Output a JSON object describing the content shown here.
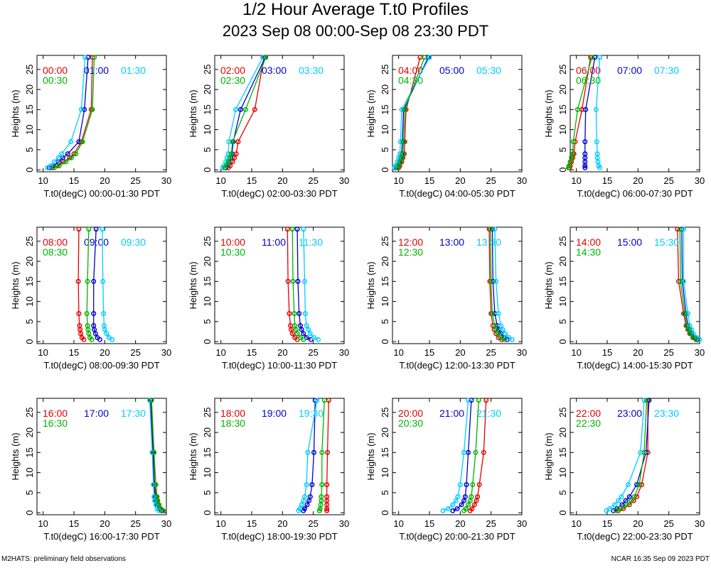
{
  "title": "1/2 Hour Average T.t0 Profiles",
  "subtitle": "2023 Sep 08 00:00-Sep 08 23:30 PDT",
  "footer_left": "M2HATS: preliminary field observations",
  "footer_right": "NCAR 16:35 Sep 09 2023 PDT",
  "colors": {
    "series1": "#e60000",
    "series2": "#0000cc",
    "series3": "#00ccff",
    "series4": "#00b300"
  },
  "chart_data": [
    {
      "type": "line",
      "xlabel": "T.t0(degC) 00:00-01:30 PDT",
      "ylabel": "Heights (m)",
      "xlim": [
        9,
        30
      ],
      "ylim": [
        -0.5,
        28.5
      ],
      "xticks": [
        10,
        15,
        20,
        25,
        30
      ],
      "yticks": [
        0,
        5,
        10,
        15,
        20,
        25
      ],
      "heights": [
        0.5,
        1,
        2,
        3,
        4,
        7,
        15,
        28
      ],
      "series": [
        {
          "name": "00:00",
          "values": [
            11.5,
            12.3,
            13.3,
            14.3,
            15.0,
            16.2,
            17.8,
            18.0
          ]
        },
        {
          "name": "01:00",
          "values": [
            11.0,
            11.6,
            12.5,
            13.2,
            14.0,
            15.8,
            16.7,
            17.3
          ]
        },
        {
          "name": "01:30",
          "values": [
            10.7,
            11.2,
            11.8,
            12.5,
            13.0,
            14.5,
            16.2,
            16.8
          ]
        },
        {
          "name": "00:30",
          "values": [
            11.8,
            12.6,
            13.7,
            14.6,
            15.3,
            16.4,
            18.0,
            18.3
          ]
        }
      ]
    },
    {
      "type": "line",
      "xlabel": "T.t0(degC) 02:00-03:30 PDT",
      "ylabel": "Heights (m)",
      "xlim": [
        9,
        30
      ],
      "ylim": [
        -0.5,
        28.5
      ],
      "xticks": [
        10,
        15,
        20,
        25,
        30
      ],
      "yticks": [
        0,
        5,
        10,
        15,
        20,
        25
      ],
      "heights": [
        0.5,
        1,
        2,
        3,
        4,
        7,
        15,
        28
      ],
      "series": [
        {
          "name": "02:00",
          "values": [
            11.2,
            11.5,
            11.9,
            12.2,
            12.5,
            12.8,
            15.5,
            17.0
          ]
        },
        {
          "name": "03:00",
          "values": [
            10.8,
            11.0,
            11.3,
            11.6,
            11.8,
            12.0,
            13.2,
            17.2
          ]
        },
        {
          "name": "03:30",
          "values": [
            10.3,
            10.5,
            10.8,
            11.0,
            11.2,
            11.3,
            12.4,
            16.8
          ]
        },
        {
          "name": "02:30",
          "values": [
            10.6,
            10.9,
            11.2,
            11.5,
            11.7,
            11.9,
            14.0,
            17.3
          ]
        }
      ]
    },
    {
      "type": "line",
      "xlabel": "T.t0(degC) 04:00-05:30 PDT",
      "ylabel": "Heights (m)",
      "xlim": [
        9,
        30
      ],
      "ylim": [
        -0.5,
        28.5
      ],
      "xticks": [
        10,
        15,
        20,
        25,
        30
      ],
      "yticks": [
        0,
        5,
        10,
        15,
        20,
        25
      ],
      "heights": [
        0.5,
        1,
        2,
        3,
        4,
        7,
        15,
        28
      ],
      "series": [
        {
          "name": "04:00",
          "values": [
            10.0,
            10.2,
            10.5,
            10.7,
            10.9,
            11.0,
            11.2,
            13.5
          ]
        },
        {
          "name": "05:00",
          "values": [
            9.6,
            9.8,
            10.1,
            10.3,
            10.5,
            10.6,
            10.8,
            14.8
          ]
        },
        {
          "name": "05:30",
          "values": [
            9.3,
            9.5,
            9.8,
            10.0,
            10.2,
            10.3,
            10.5,
            15.0
          ]
        },
        {
          "name": "04:30",
          "values": [
            9.8,
            10.0,
            10.3,
            10.5,
            10.7,
            10.8,
            11.0,
            14.2
          ]
        }
      ]
    },
    {
      "type": "line",
      "xlabel": "T.t0(degC) 06:00-07:30 PDT",
      "ylabel": "Heights (m)",
      "xlim": [
        9,
        30
      ],
      "ylim": [
        -0.5,
        28.5
      ],
      "xticks": [
        10,
        15,
        20,
        25,
        30
      ],
      "yticks": [
        0,
        5,
        10,
        15,
        20,
        25
      ],
      "heights": [
        0.5,
        1,
        2,
        3,
        4,
        7,
        15,
        28
      ],
      "series": [
        {
          "name": "06:00",
          "values": [
            8.9,
            9.0,
            9.2,
            9.4,
            9.6,
            9.8,
            10.9,
            12.3
          ]
        },
        {
          "name": "07:00",
          "values": [
            11.4,
            11.4,
            11.4,
            11.4,
            11.4,
            11.4,
            11.5,
            13.0
          ]
        },
        {
          "name": "07:30",
          "values": [
            13.8,
            13.6,
            13.5,
            13.4,
            13.4,
            13.3,
            13.2,
            13.8
          ]
        },
        {
          "name": "06:30",
          "values": [
            8.7,
            8.8,
            9.0,
            9.2,
            9.4,
            9.5,
            10.2,
            12.5
          ]
        }
      ]
    },
    {
      "type": "line",
      "xlabel": "T.t0(degC) 08:00-09:30 PDT",
      "ylabel": "Heights (m)",
      "xlim": [
        9,
        30
      ],
      "ylim": [
        -0.5,
        28.5
      ],
      "xticks": [
        10,
        15,
        20,
        25,
        30
      ],
      "yticks": [
        0,
        5,
        10,
        15,
        20,
        25
      ],
      "heights": [
        0.5,
        1,
        2,
        3,
        4,
        7,
        15,
        28
      ],
      "series": [
        {
          "name": "08:00",
          "values": [
            16.6,
            16.3,
            16.1,
            16.0,
            15.9,
            15.8,
            15.7,
            15.8
          ]
        },
        {
          "name": "09:00",
          "values": [
            19.2,
            18.8,
            18.5,
            18.3,
            18.2,
            18.2,
            18.2,
            18.6
          ]
        },
        {
          "name": "09:30",
          "values": [
            21.2,
            20.7,
            20.3,
            20.0,
            19.9,
            19.8,
            19.7,
            19.6
          ]
        },
        {
          "name": "08:30",
          "values": [
            17.9,
            17.6,
            17.4,
            17.3,
            17.2,
            17.1,
            17.2,
            17.4
          ]
        }
      ]
    },
    {
      "type": "line",
      "xlabel": "T.t0(degC) 10:00-11:30 PDT",
      "ylabel": "Heights (m)",
      "xlim": [
        9,
        30
      ],
      "ylim": [
        -0.5,
        28.5
      ],
      "xticks": [
        10,
        15,
        20,
        25,
        30
      ],
      "yticks": [
        0,
        5,
        10,
        15,
        20,
        25
      ],
      "heights": [
        0.5,
        1,
        2,
        3,
        4,
        7,
        15,
        28
      ],
      "series": [
        {
          "name": "10:00",
          "values": [
            22.4,
            22.0,
            21.6,
            21.4,
            21.3,
            21.1,
            20.9,
            20.8
          ]
        },
        {
          "name": "11:00",
          "values": [
            24.6,
            23.9,
            23.4,
            23.1,
            22.9,
            22.7,
            22.5,
            22.4
          ]
        },
        {
          "name": "11:30",
          "values": [
            25.8,
            25.1,
            24.5,
            24.2,
            23.9,
            23.7,
            23.6,
            23.4
          ]
        },
        {
          "name": "10:30",
          "values": [
            23.4,
            22.9,
            22.4,
            22.2,
            22.0,
            21.9,
            21.7,
            21.6
          ]
        }
      ]
    },
    {
      "type": "line",
      "xlabel": "T.t0(degC) 12:00-13:30 PDT",
      "ylabel": "Heights (m)",
      "xlim": [
        9,
        30
      ],
      "ylim": [
        -0.5,
        28.5
      ],
      "xticks": [
        10,
        15,
        20,
        25,
        30
      ],
      "yticks": [
        0,
        5,
        10,
        15,
        20,
        25
      ],
      "heights": [
        0.5,
        1,
        2,
        3,
        4,
        7,
        15,
        28
      ],
      "series": [
        {
          "name": "12:00",
          "values": [
            26.7,
            26.2,
            25.8,
            25.5,
            25.3,
            25.0,
            24.8,
            24.7
          ]
        },
        {
          "name": "13:00",
          "values": [
            27.6,
            27.1,
            26.6,
            26.3,
            26.0,
            25.6,
            25.3,
            25.2
          ]
        },
        {
          "name": "13:30",
          "values": [
            28.4,
            27.9,
            27.3,
            26.9,
            26.6,
            26.2,
            25.8,
            25.6
          ]
        },
        {
          "name": "12:30",
          "values": [
            27.1,
            26.6,
            26.1,
            25.8,
            25.6,
            25.2,
            25.0,
            24.9
          ]
        }
      ]
    },
    {
      "type": "line",
      "xlabel": "T.t0(degC) 14:00-15:30 PDT",
      "ylabel": "Heights (m)",
      "xlim": [
        9,
        30
      ],
      "ylim": [
        -0.5,
        28.5
      ],
      "xticks": [
        10,
        15,
        20,
        25,
        30
      ],
      "yticks": [
        0,
        5,
        10,
        15,
        20,
        25
      ],
      "heights": [
        0.5,
        1,
        2,
        3,
        4,
        7,
        15,
        28
      ],
      "series": [
        {
          "name": "14:00",
          "values": [
            29.4,
            28.9,
            28.4,
            28.1,
            27.8,
            27.4,
            26.6,
            26.4
          ]
        },
        {
          "name": "15:00",
          "values": [
            29.7,
            29.2,
            28.7,
            28.4,
            28.1,
            27.8,
            27.2,
            27.1
          ]
        },
        {
          "name": "15:30",
          "values": [
            30.0,
            29.5,
            29.0,
            28.7,
            28.4,
            28.1,
            27.4,
            27.4
          ]
        },
        {
          "name": "14:30",
          "values": [
            29.5,
            29.0,
            28.5,
            28.2,
            27.9,
            27.6,
            26.9,
            26.8
          ]
        }
      ]
    },
    {
      "type": "line",
      "xlabel": "T.t0(degC) 16:00-17:30 PDT",
      "ylabel": "Heights (m)",
      "xlim": [
        9,
        30
      ],
      "ylim": [
        -0.5,
        28.5
      ],
      "xticks": [
        10,
        15,
        20,
        25,
        30
      ],
      "yticks": [
        0,
        5,
        10,
        15,
        20,
        25
      ],
      "heights": [
        0.5,
        1,
        2,
        3,
        4,
        7,
        15,
        28
      ],
      "series": [
        {
          "name": "16:00",
          "values": [
            29.4,
            29.0,
            28.7,
            28.5,
            28.4,
            28.1,
            27.9,
            27.5
          ]
        },
        {
          "name": "17:00",
          "values": [
            29.2,
            28.8,
            28.5,
            28.3,
            28.2,
            28.0,
            27.8,
            27.4
          ]
        },
        {
          "name": "17:30",
          "values": [
            28.8,
            28.5,
            28.3,
            28.1,
            28.0,
            27.9,
            27.7,
            27.3
          ]
        },
        {
          "name": "16:30",
          "values": [
            29.5,
            29.1,
            28.8,
            28.6,
            28.5,
            28.3,
            28.0,
            27.6
          ]
        }
      ]
    },
    {
      "type": "line",
      "xlabel": "T.t0(degC) 18:00-19:30 PDT",
      "ylabel": "Heights (m)",
      "xlim": [
        9,
        30
      ],
      "ylim": [
        -0.5,
        28.5
      ],
      "xticks": [
        10,
        15,
        20,
        25,
        30
      ],
      "yticks": [
        0,
        5,
        10,
        15,
        20,
        25
      ],
      "heights": [
        0.5,
        1,
        2,
        3,
        4,
        7,
        15,
        28
      ],
      "series": [
        {
          "name": "18:00",
          "values": [
            27.2,
            27.2,
            27.2,
            27.2,
            27.2,
            27.2,
            27.3,
            27.5
          ]
        },
        {
          "name": "19:00",
          "values": [
            23.4,
            23.6,
            24.0,
            24.3,
            24.5,
            24.8,
            25.1,
            25.3
          ]
        },
        {
          "name": "19:30",
          "values": [
            22.6,
            22.8,
            23.1,
            23.4,
            23.6,
            23.9,
            24.1,
            25.6
          ]
        },
        {
          "name": "18:30",
          "values": [
            26.0,
            26.1,
            26.2,
            26.3,
            26.3,
            26.4,
            26.4,
            26.8
          ]
        }
      ]
    },
    {
      "type": "line",
      "xlabel": "T.t0(degC) 20:00-21:30 PDT",
      "ylabel": "Heights (m)",
      "xlim": [
        9,
        30
      ],
      "ylim": [
        -0.5,
        28.5
      ],
      "xticks": [
        10,
        15,
        20,
        25,
        30
      ],
      "yticks": [
        0,
        5,
        10,
        15,
        20,
        25
      ],
      "heights": [
        0.5,
        1,
        2,
        3,
        4,
        7,
        15,
        28
      ],
      "series": [
        {
          "name": "20:00",
          "values": [
            21.6,
            21.9,
            22.3,
            22.6,
            22.8,
            23.1,
            23.8,
            24.2
          ]
        },
        {
          "name": "21:00",
          "values": [
            18.8,
            19.5,
            20.2,
            20.6,
            20.8,
            21.0,
            21.3,
            21.8
          ]
        },
        {
          "name": "21:30",
          "values": [
            17.2,
            18.0,
            18.8,
            19.3,
            19.6,
            20.0,
            20.6,
            21.3
          ]
        },
        {
          "name": "20:30",
          "values": [
            20.6,
            20.9,
            21.3,
            21.6,
            21.8,
            22.0,
            22.5,
            23.0
          ]
        }
      ]
    },
    {
      "type": "line",
      "xlabel": "T.t0(degC) 22:00-23:30 PDT",
      "ylabel": "Heights (m)",
      "xlim": [
        9,
        30
      ],
      "ylim": [
        -0.5,
        28.5
      ],
      "xticks": [
        10,
        15,
        20,
        25,
        30
      ],
      "yticks": [
        0,
        5,
        10,
        15,
        20,
        25
      ],
      "heights": [
        0.5,
        1,
        2,
        3,
        4,
        7,
        15,
        28
      ],
      "series": [
        {
          "name": "22:00",
          "values": [
            16.8,
            17.6,
            18.6,
            19.3,
            19.8,
            20.6,
            21.6,
            21.6
          ]
        },
        {
          "name": "23:00",
          "values": [
            16.0,
            16.6,
            17.4,
            18.0,
            18.6,
            19.8,
            21.3,
            21.8
          ]
        },
        {
          "name": "23:30",
          "values": [
            14.9,
            15.4,
            16.2,
            16.8,
            17.3,
            18.4,
            20.4,
            21.0
          ]
        },
        {
          "name": "22:30",
          "values": [
            16.5,
            17.2,
            18.2,
            18.9,
            19.4,
            20.2,
            21.0,
            21.4
          ]
        }
      ]
    }
  ]
}
